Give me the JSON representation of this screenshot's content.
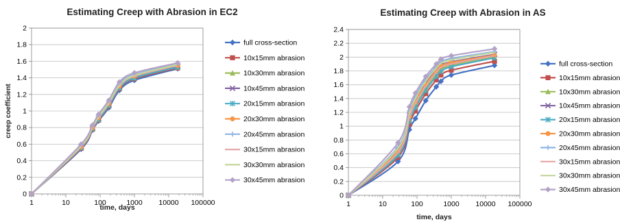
{
  "chart_data": [
    {
      "type": "line",
      "title": "Estimating Creep with Abrasion in EC2",
      "xlabel": "time, days",
      "ylabel": "creep coefficient",
      "xscale": "log",
      "xlim": [
        1,
        100000
      ],
      "ylim": [
        0,
        2
      ],
      "yticks": [
        "0",
        "0.2",
        "0.4",
        "0.6",
        "0.8",
        "1",
        "1.2",
        "1.4",
        "1.6",
        "1.8",
        "2"
      ],
      "xticks": [
        "1",
        "10",
        "100",
        "1000",
        "10000",
        "100000"
      ],
      "grid": "horizontal",
      "legend": "right",
      "x": [
        1,
        28,
        60,
        90,
        180,
        365,
        1000,
        18250
      ],
      "series": [
        {
          "name": "full cross-section",
          "color": "#4472c4",
          "marker": "diamond",
          "values": [
            0,
            0.54,
            0.77,
            0.88,
            1.04,
            1.25,
            1.37,
            1.51
          ]
        },
        {
          "name": "10x15mm abrasion",
          "color": "#c0504d",
          "marker": "square",
          "values": [
            0,
            0.55,
            0.78,
            0.89,
            1.06,
            1.27,
            1.39,
            1.52
          ]
        },
        {
          "name": "10x30mm abrasion",
          "color": "#9bbb59",
          "marker": "triangle",
          "values": [
            0,
            0.56,
            0.79,
            0.9,
            1.07,
            1.28,
            1.4,
            1.53
          ]
        },
        {
          "name": "10x45mm abrasion",
          "color": "#8064a2",
          "marker": "x",
          "values": [
            0,
            0.57,
            0.8,
            0.91,
            1.08,
            1.29,
            1.41,
            1.54
          ]
        },
        {
          "name": "20x15mm abrasion",
          "color": "#4bacc6",
          "marker": "star",
          "values": [
            0,
            0.56,
            0.79,
            0.9,
            1.07,
            1.28,
            1.4,
            1.53
          ]
        },
        {
          "name": "20x30mm abrasion",
          "color": "#f79646",
          "marker": "circle",
          "values": [
            0,
            0.57,
            0.8,
            0.92,
            1.09,
            1.3,
            1.42,
            1.55
          ]
        },
        {
          "name": "20x45mm abrasion",
          "color": "#8eb4e3",
          "marker": "plus",
          "values": [
            0,
            0.59,
            0.82,
            0.94,
            1.11,
            1.33,
            1.44,
            1.57
          ]
        },
        {
          "name": "30x15mm abrasion",
          "color": "#e6a6a4",
          "marker": "none",
          "values": [
            0,
            0.57,
            0.8,
            0.92,
            1.09,
            1.3,
            1.42,
            1.55
          ]
        },
        {
          "name": "30x30mm abrasion",
          "color": "#c3d69b",
          "marker": "none",
          "values": [
            0,
            0.58,
            0.81,
            0.93,
            1.1,
            1.31,
            1.43,
            1.56
          ]
        },
        {
          "name": "30x45mm abrasion",
          "color": "#b3a2c7",
          "marker": "diamond",
          "values": [
            0,
            0.6,
            0.83,
            0.96,
            1.13,
            1.35,
            1.46,
            1.58
          ]
        }
      ]
    },
    {
      "type": "line",
      "title": "Estimating Creep with Abrasion in AS",
      "xlabel": "time, days",
      "ylabel": "",
      "xscale": "log",
      "xlim": [
        1,
        100000
      ],
      "ylim": [
        0,
        2.4
      ],
      "yticks": [
        "0",
        "0.2",
        "0.4",
        "0.6",
        "0.8",
        "1",
        "1.2",
        "1.4",
        "1.6",
        "1.8",
        "2",
        "2.2",
        "2.4"
      ],
      "xticks": [
        "1",
        "10",
        "100",
        "1000",
        "10000",
        "100000"
      ],
      "grid": "horizontal",
      "legend": "right",
      "x": [
        1,
        28,
        60,
        90,
        180,
        365,
        500,
        1000,
        18250
      ],
      "series": [
        {
          "name": "full cross-section",
          "color": "#4472c4",
          "marker": "diamond",
          "values": [
            0,
            0.49,
            0.95,
            1.11,
            1.37,
            1.57,
            1.65,
            1.74,
            1.88
          ]
        },
        {
          "name": "10x15mm abrasion",
          "color": "#c0504d",
          "marker": "square",
          "values": [
            0,
            0.55,
            1.03,
            1.22,
            1.47,
            1.67,
            1.74,
            1.81,
            1.94
          ]
        },
        {
          "name": "10x30mm abrasion",
          "color": "#9bbb59",
          "marker": "triangle",
          "values": [
            0,
            0.6,
            1.1,
            1.3,
            1.55,
            1.75,
            1.82,
            1.88,
            2.0
          ]
        },
        {
          "name": "10x45mm abrasion",
          "color": "#8064a2",
          "marker": "x",
          "values": [
            0,
            0.65,
            1.16,
            1.38,
            1.62,
            1.81,
            1.88,
            1.93,
            2.04
          ]
        },
        {
          "name": "20x15mm abrasion",
          "color": "#4bacc6",
          "marker": "star",
          "values": [
            0,
            0.58,
            1.07,
            1.27,
            1.52,
            1.72,
            1.79,
            1.86,
            1.99
          ]
        },
        {
          "name": "20x30mm abrasion",
          "color": "#f79646",
          "marker": "circle",
          "values": [
            0,
            0.64,
            1.14,
            1.35,
            1.6,
            1.8,
            1.87,
            1.92,
            2.03
          ]
        },
        {
          "name": "20x45mm abrasion",
          "color": "#8eb4e3",
          "marker": "plus",
          "values": [
            0,
            0.7,
            1.22,
            1.43,
            1.68,
            1.86,
            1.93,
            1.98,
            2.08
          ]
        },
        {
          "name": "30x15mm abrasion",
          "color": "#e6a6a4",
          "marker": "none",
          "values": [
            0,
            0.62,
            1.12,
            1.33,
            1.58,
            1.78,
            1.85,
            1.9,
            2.02
          ]
        },
        {
          "name": "30x30mm abrasion",
          "color": "#c3d69b",
          "marker": "none",
          "values": [
            0,
            0.68,
            1.19,
            1.4,
            1.65,
            1.84,
            1.91,
            1.96,
            2.07
          ]
        },
        {
          "name": "30x45mm abrasion",
          "color": "#b3a2c7",
          "marker": "diamond",
          "values": [
            0,
            0.76,
            1.28,
            1.48,
            1.72,
            1.9,
            1.97,
            2.02,
            2.12
          ]
        }
      ]
    }
  ]
}
